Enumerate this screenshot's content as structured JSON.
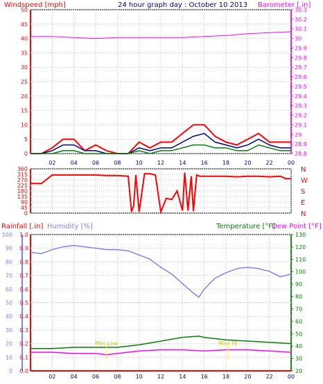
{
  "chart_data": [
    {
      "type": "line",
      "title": "24 hour graph day : October 10 2013",
      "left_axis_label": "Windspeed [mph]",
      "right_axis_label": "Barometer [.in]",
      "x_tick_labels": [
        "02",
        "04",
        "06",
        "08",
        "10",
        "12",
        "14",
        "16",
        "18",
        "20",
        "22",
        "00"
      ],
      "ylim_left": [
        0,
        50
      ],
      "y_ticks_left": [
        0,
        5,
        10,
        15,
        20,
        25,
        30,
        35,
        40,
        45,
        50
      ],
      "ylim_right": [
        28.8,
        30.3
      ],
      "y_ticks_right": [
        28.8,
        28.9,
        29.0,
        29.1,
        29.2,
        29.3,
        29.4,
        29.5,
        29.6,
        29.7,
        29.8,
        29.9,
        30.0,
        30.1,
        30.2,
        30.3
      ],
      "y_tick_labels_right": [
        "28.8",
        "28.9",
        "29",
        "29.1",
        "29.2",
        "29.3",
        "29.4",
        "29.5",
        "29.6",
        "29.7",
        "29.8",
        "29.9",
        "30",
        "30.1",
        "30.2",
        "30.3"
      ],
      "series": [
        {
          "color": "#ff00ff",
          "hours": [
            0,
            2,
            4,
            6,
            8,
            10,
            12,
            14,
            16,
            18,
            20,
            22,
            24
          ],
          "values": [
            30.02,
            30.02,
            30.01,
            30.0,
            30.01,
            30.01,
            30.01,
            30.01,
            30.02,
            30.03,
            30.05,
            30.06,
            30.07
          ]
        },
        {
          "color": "#ff0000",
          "hours": [
            0,
            1,
            2,
            3,
            4,
            5,
            6,
            7,
            8,
            9,
            10,
            11,
            12,
            13,
            14,
            15,
            16,
            17,
            18,
            19,
            20,
            21,
            22,
            23,
            24
          ],
          "values": [
            0,
            0,
            2,
            5,
            5,
            1,
            3,
            1,
            0,
            0,
            4,
            2,
            4,
            4,
            7,
            10,
            10,
            6,
            4,
            3,
            5,
            7,
            4,
            4,
            4
          ]
        },
        {
          "color": "#000080",
          "hours": [
            0,
            1,
            2,
            3,
            4,
            5,
            6,
            7,
            8,
            9,
            10,
            11,
            12,
            13,
            14,
            15,
            16,
            17,
            18,
            19,
            20,
            21,
            22,
            23,
            24
          ],
          "values": [
            0,
            0,
            1,
            3,
            3,
            1,
            1,
            0,
            0,
            0,
            2,
            1,
            2,
            2,
            4,
            6,
            7,
            4,
            3,
            2,
            3,
            5,
            3,
            2,
            2
          ]
        },
        {
          "color": "#008000",
          "hours": [
            0,
            1,
            2,
            3,
            4,
            5,
            6,
            7,
            8,
            9,
            10,
            11,
            12,
            13,
            14,
            15,
            16,
            17,
            18,
            19,
            20,
            21,
            22,
            23,
            24
          ],
          "values": [
            0,
            0,
            0,
            1,
            1,
            0,
            0,
            0,
            0,
            0,
            1,
            0,
            1,
            1,
            2,
            3,
            3,
            2,
            2,
            1,
            1,
            3,
            2,
            1,
            1
          ]
        }
      ]
    },
    {
      "type": "line",
      "right_axis_labels": [
        "N",
        "W",
        "S",
        "E",
        "N"
      ],
      "ylim": [
        0,
        360
      ],
      "y_ticks": [
        0,
        45,
        90,
        135,
        180,
        225,
        270,
        315,
        360
      ],
      "series": [
        {
          "color": "#ff0000",
          "hours": [
            0,
            1,
            2,
            3,
            4,
            5,
            6,
            7,
            8,
            9,
            9.3,
            9.5,
            9.7,
            10,
            10.5,
            11,
            11.5,
            12,
            12.5,
            13,
            13.5,
            14,
            14.2,
            14.5,
            14.8,
            15,
            15.3,
            15.6,
            16,
            17,
            18,
            19,
            20,
            21,
            22,
            23,
            23.5,
            24
          ],
          "values": [
            240,
            240,
            310,
            310,
            310,
            310,
            310,
            305,
            305,
            300,
            10,
            60,
            310,
            10,
            320,
            320,
            310,
            10,
            120,
            110,
            180,
            20,
            330,
            20,
            300,
            15,
            310,
            300,
            300,
            300,
            300,
            295,
            300,
            300,
            295,
            300,
            280,
            280
          ]
        }
      ]
    },
    {
      "type": "line",
      "left_axis_label": "Rainfall [.in]",
      "left_axis_label2": "Humidity [%]",
      "right_axis_label": "Temperature [°F]",
      "right_axis_label2": "Dew Point [°F]",
      "x_tick_labels": [
        "02",
        "04",
        "06",
        "08",
        "10",
        "12",
        "14",
        "16",
        "18",
        "20",
        "22",
        "00"
      ],
      "ylim_humidity": [
        0,
        100
      ],
      "y_ticks_humidity": [
        0,
        10,
        20,
        30,
        40,
        50,
        60,
        70,
        80,
        90,
        100
      ],
      "ylim_rain": [
        0.0,
        1.0
      ],
      "y_ticks_rain": [
        0.0,
        0.1,
        0.2,
        0.3,
        0.4,
        0.5,
        0.6,
        0.7,
        0.8,
        0.9,
        1.0
      ],
      "ylim_temp": [
        20,
        130
      ],
      "y_ticks_temp": [
        20,
        30,
        40,
        50,
        60,
        70,
        80,
        90,
        100,
        110,
        120,
        130
      ],
      "annotations": [
        {
          "text": "Min Low",
          "hour": 7.0
        },
        {
          "text": "Max Hi",
          "hour": 18.2
        }
      ],
      "series": [
        {
          "name": "Humidity",
          "color": "#7f7fff",
          "hours": [
            0,
            1,
            2,
            3,
            4,
            5,
            6,
            7,
            8,
            9,
            10,
            11,
            12,
            13,
            14,
            15,
            15.5,
            16,
            17,
            18,
            19,
            20,
            21,
            22,
            23,
            24
          ],
          "values": [
            87,
            86,
            89,
            91,
            92,
            91,
            90,
            89,
            89,
            88,
            85,
            82,
            76,
            71,
            64,
            57,
            54,
            60,
            68,
            72,
            75,
            76,
            75,
            73,
            69,
            71
          ]
        },
        {
          "name": "Temperature",
          "color": "#008000",
          "hours": [
            0,
            2,
            4,
            6,
            8,
            10,
            12,
            14,
            15.5,
            16,
            18,
            20,
            22,
            24
          ],
          "values": [
            38,
            38,
            39,
            39,
            39,
            41,
            44,
            47,
            48,
            47,
            45,
            44,
            43,
            42
          ]
        },
        {
          "name": "Dew Point",
          "color": "#ff00ff",
          "hours": [
            0,
            2,
            4,
            6,
            7,
            8,
            10,
            12,
            14,
            16,
            18,
            20,
            22,
            24
          ],
          "values": [
            35,
            35,
            34,
            34,
            33,
            34,
            36,
            37,
            37,
            36,
            37,
            37,
            36,
            35
          ]
        },
        {
          "name": "Rainfall",
          "color": "#ff0000",
          "hours": [
            0,
            24
          ],
          "values": [
            0,
            0
          ]
        }
      ]
    }
  ]
}
